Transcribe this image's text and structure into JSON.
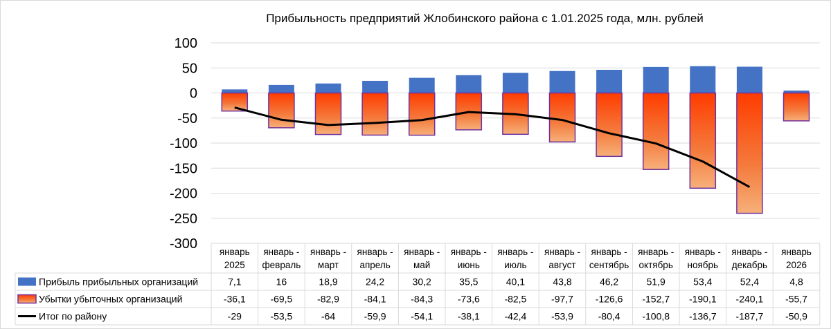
{
  "chart_data": {
    "type": "bar",
    "title": "Прибыльность предприятий Жлобинского района с 1.01.2025 года, млн. рублей",
    "categories": [
      [
        "январь",
        "2025"
      ],
      [
        "январь -",
        "февраль"
      ],
      [
        "январь -",
        "март"
      ],
      [
        "январь -",
        "апрель"
      ],
      [
        "январь -",
        "май"
      ],
      [
        "январь -",
        "июнь"
      ],
      [
        "январь -",
        "июль"
      ],
      [
        "январь -",
        "август"
      ],
      [
        "январь -",
        "сентябрь"
      ],
      [
        "январь -",
        "октябрь"
      ],
      [
        "январь -",
        "ноябрь"
      ],
      [
        "январь -",
        "декабрь"
      ],
      [
        "январь",
        "2026"
      ]
    ],
    "ylim": [
      -300,
      100
    ],
    "yticks": [
      100,
      50,
      0,
      -50,
      -100,
      -150,
      -200,
      -250,
      -300
    ],
    "grid": true,
    "legend_placement": "data-table",
    "series": [
      {
        "name": "Прибыль прибыльных организаций",
        "type": "bar",
        "color": "#4472C4",
        "values": [
          7.1,
          16,
          18.9,
          24.2,
          30.2,
          35.5,
          40.1,
          43.8,
          46.2,
          51.9,
          53.4,
          52.4,
          4.8
        ],
        "labels": [
          "7,1",
          "16",
          "18,9",
          "24,2",
          "30,2",
          "35,5",
          "40,1",
          "43,8",
          "46,2",
          "51,9",
          "53,4",
          "52,4",
          "4,8"
        ]
      },
      {
        "name": "Убытки убыточных организаций",
        "type": "bar",
        "color": "#FF4500",
        "border": "#7030A0",
        "values": [
          -36.1,
          -69.5,
          -82.9,
          -84.1,
          -84.3,
          -73.6,
          -82.5,
          -97.7,
          -126.6,
          -152.7,
          -190.1,
          -240.1,
          -55.7
        ],
        "labels": [
          "-36,1",
          "-69,5",
          "-82,9",
          "-84,1",
          "-84,3",
          "-73,6",
          "-82,5",
          "-97,7",
          "-126,6",
          "-152,7",
          "-190,1",
          "-240,1",
          "-55,7"
        ]
      },
      {
        "name": "Итог по району",
        "type": "line",
        "color": "#000000",
        "values": [
          -29,
          -53.5,
          -64,
          -59.9,
          -54.1,
          -38.1,
          -42.4,
          -53.9,
          -80.4,
          -100.8,
          -136.7,
          -187.7,
          -50.9
        ],
        "labels": [
          "-29",
          "-53,5",
          "-64",
          "-59,9",
          "-54,1",
          "-38,1",
          "-42,4",
          "-53,9",
          "-80,4",
          "-100,8",
          "-136,7",
          "-187,7",
          "-50,9"
        ],
        "line_points": 12
      }
    ]
  }
}
